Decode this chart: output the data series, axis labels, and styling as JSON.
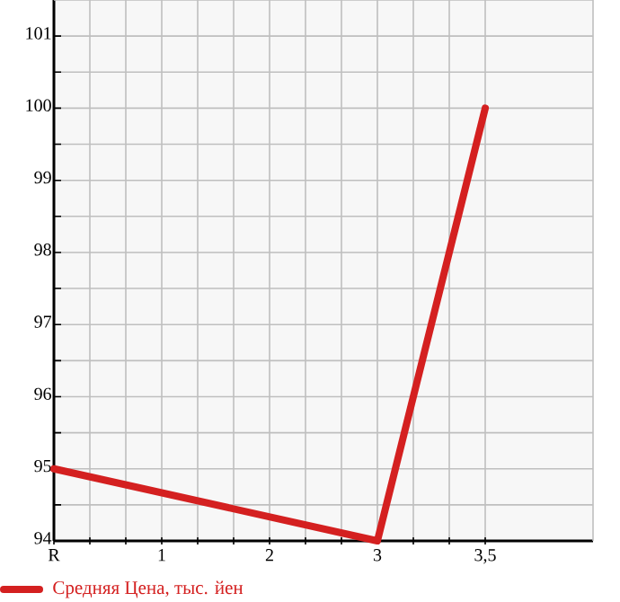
{
  "chart_data": {
    "type": "line",
    "categories": [
      "R",
      "1",
      "2",
      "3",
      "3,5"
    ],
    "series": [
      {
        "name": "Средняя Цена, тыс. йен",
        "color": "#d42020",
        "values": [
          95,
          null,
          null,
          94,
          100
        ]
      }
    ],
    "ylim": [
      94,
      101.5
    ],
    "yticks": [
      94,
      95,
      96,
      97,
      98,
      99,
      100,
      101
    ],
    "grid": true,
    "legend": "bottom left",
    "marker": "none",
    "line_style": "solid"
  }
}
